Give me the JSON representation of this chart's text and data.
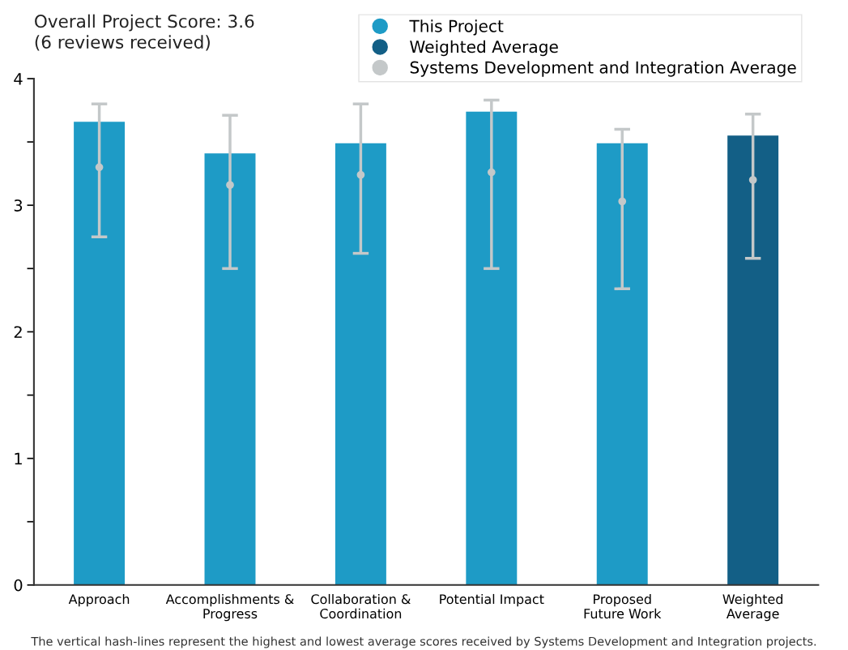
{
  "chart_data": {
    "type": "bar",
    "title": "Overall Project Score: 3.6",
    "subtitle": "(6 reviews received)",
    "categories": [
      "Approach",
      "Accomplishments &\nProgress",
      "Collaboration &\nCoordination",
      "Potential Impact",
      "Proposed\nFuture Work",
      "Weighted\nAverage"
    ],
    "series": [
      {
        "name": "This Project",
        "color": "#1e9bc6",
        "values": [
          3.66,
          3.41,
          3.49,
          3.74,
          3.49,
          null
        ]
      },
      {
        "name": "Weighted Average",
        "color": "#135f86",
        "values": [
          null,
          null,
          null,
          null,
          null,
          3.55
        ]
      },
      {
        "name": "Systems Development and Integration Average",
        "type": "scatter",
        "color": "#c4c8c9",
        "marker": "circle",
        "values": [
          3.3,
          3.16,
          3.24,
          3.26,
          3.03,
          3.2
        ],
        "errors": [
          [
            2.75,
            3.8
          ],
          [
            2.5,
            3.71
          ],
          [
            2.62,
            3.8
          ],
          [
            2.5,
            3.83
          ],
          [
            2.34,
            3.6
          ],
          [
            2.58,
            3.72
          ]
        ]
      }
    ],
    "ylim": [
      0,
      4
    ],
    "yticks": [
      0,
      {
        "value": 0.5,
        "label": null
      },
      1,
      {
        "value": 1.5,
        "label": null
      },
      2,
      {
        "value": 2.5,
        "label": null
      },
      3,
      {
        "value": 3.5,
        "label": null
      },
      4
    ],
    "grid": false,
    "legend": "top right",
    "annotations": [
      "The vertical hash-lines represent the highest and lowest average scores received by Systems Development and Integration projects."
    ]
  }
}
